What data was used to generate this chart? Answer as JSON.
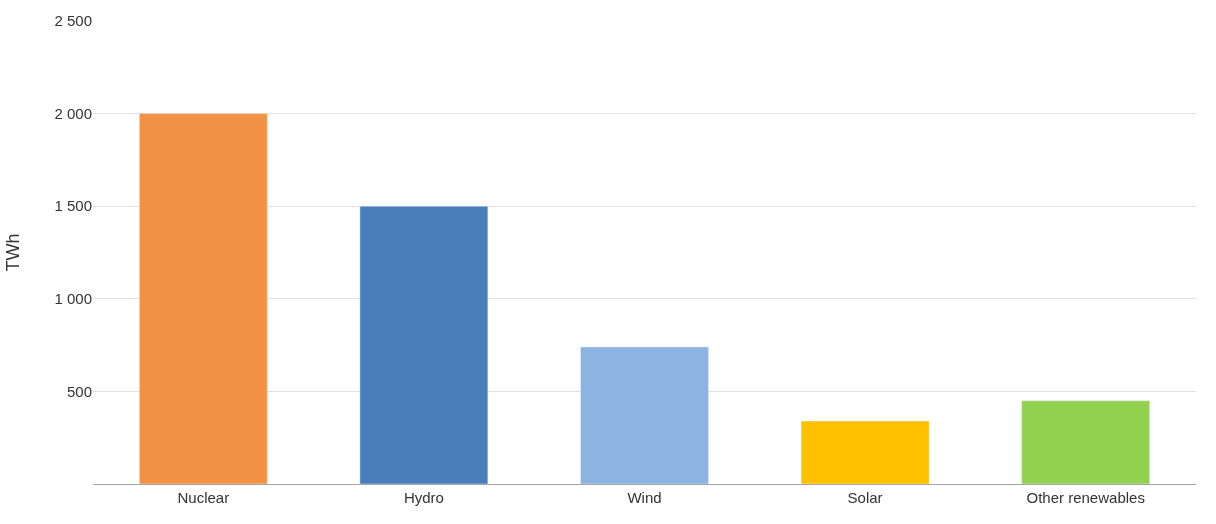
{
  "chart_data": {
    "type": "bar",
    "ylabel": "TWh",
    "categories": [
      "Nuclear",
      "Hydro",
      "Wind",
      "Solar",
      "Other renewables"
    ],
    "values": [
      2000,
      1500,
      740,
      340,
      450
    ],
    "colors": [
      "#f39244",
      "#4a7ebb",
      "#8db3e2",
      "#ffc000",
      "#92d050"
    ],
    "ylim": [
      0,
      2500
    ],
    "yticks": [
      {
        "value": 500,
        "label": "500"
      },
      {
        "value": 1000,
        "label": "1 000"
      },
      {
        "value": 1500,
        "label": "1 500"
      },
      {
        "value": 2000,
        "label": "2 000"
      },
      {
        "value": 2500,
        "label": "2 500"
      }
    ],
    "grid": "y"
  }
}
